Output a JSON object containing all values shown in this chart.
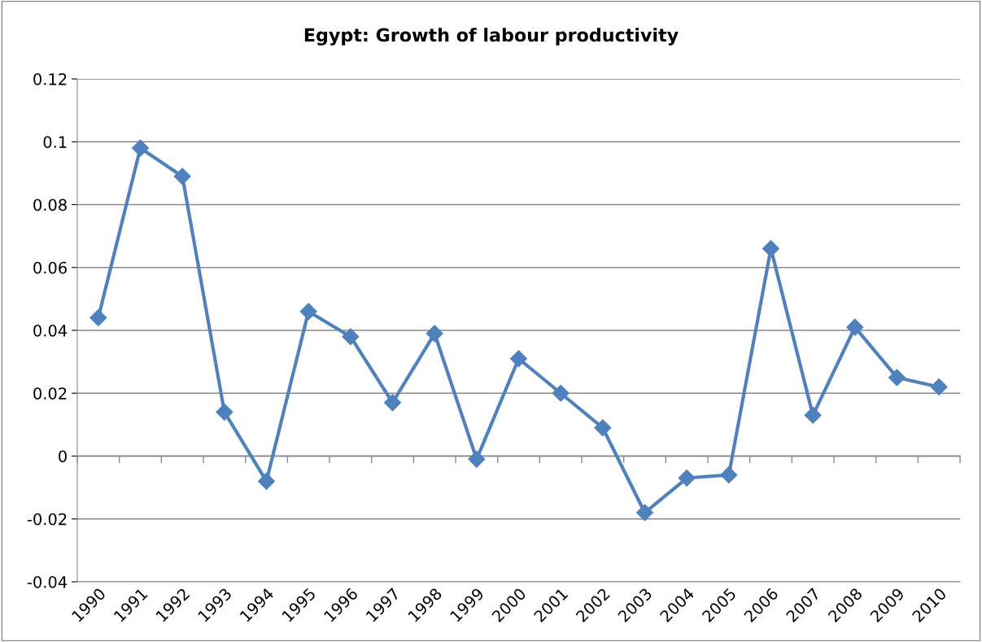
{
  "chart_data": {
    "type": "line",
    "title": "Egypt: Growth of labour productivity",
    "categories": [
      "1990",
      "1991",
      "1992",
      "1993",
      "1994",
      "1995",
      "1996",
      "1997",
      "1998",
      "1999",
      "2000",
      "2001",
      "2002",
      "2003",
      "2004",
      "2005",
      "2006",
      "2007",
      "2008",
      "2009",
      "2010"
    ],
    "series": [
      {
        "color": "#4f81bd",
        "values": [
          0.044,
          0.098,
          0.089,
          0.014,
          -0.008,
          0.046,
          0.038,
          0.017,
          0.039,
          -0.001,
          0.031,
          0.02,
          0.009,
          -0.018,
          -0.007,
          -0.006,
          0.066,
          0.013,
          0.041,
          0.025,
          0.022
        ]
      }
    ],
    "ylim": [
      -0.04,
      0.12
    ],
    "yticks": [
      -0.04,
      -0.02,
      0,
      0.02,
      0.04,
      0.06,
      0.08,
      0.1,
      0.12
    ],
    "grid": "y",
    "marker": "diamond",
    "line_style": "solid"
  }
}
